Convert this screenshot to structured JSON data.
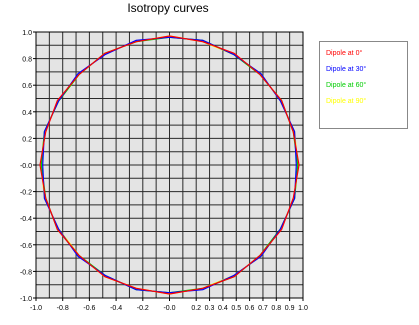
{
  "chart_data": {
    "type": "line",
    "title": "Isotropy curves",
    "xlabel": "",
    "ylabel": "",
    "xlim": [
      -1.0,
      1.0
    ],
    "ylim": [
      -1.0,
      1.0
    ],
    "grid": true,
    "legend_position": "right",
    "x_ticks": [
      "-1.0",
      "-0.8",
      "-0.6",
      "-0.4",
      "-0.2",
      "-0.0",
      "0.2",
      "0.3",
      "0.4",
      "0.5",
      "0.6",
      "0.7",
      "0.8",
      "0.9",
      "1.0"
    ],
    "y_ticks": [
      "1.0",
      "0.8",
      "0.6",
      "0.4",
      "0.2",
      "-0.0",
      "-0.2",
      "-0.4",
      "-0.6",
      "-0.8",
      "-1.0"
    ],
    "angles_deg": [
      0,
      15,
      30,
      45,
      60,
      75,
      90,
      105,
      120,
      135,
      150,
      165,
      180,
      195,
      210,
      225,
      240,
      255,
      270,
      285,
      300,
      315,
      330,
      345,
      360
    ],
    "series": [
      {
        "name": "Dipole at 0°",
        "color": "#ff0000",
        "radius": [
          0.97,
          0.96,
          0.97,
          0.96,
          0.97,
          0.96,
          0.97,
          0.96,
          0.97,
          0.96,
          0.97,
          0.96,
          0.97,
          0.96,
          0.97,
          0.96,
          0.97,
          0.96,
          0.97,
          0.96,
          0.97,
          0.96,
          0.97,
          0.96,
          0.97
        ]
      },
      {
        "name": "Dipole at 30°",
        "color": "#0000ff",
        "radius": [
          0.95,
          0.97,
          0.96,
          0.97,
          0.96,
          0.97,
          0.96,
          0.97,
          0.96,
          0.97,
          0.96,
          0.97,
          0.95,
          0.97,
          0.96,
          0.97,
          0.96,
          0.97,
          0.96,
          0.97,
          0.96,
          0.97,
          0.96,
          0.97,
          0.95
        ]
      },
      {
        "name": "Dipole at 60°",
        "color": "#00cc00",
        "radius": [
          0.96,
          0.96,
          0.97,
          0.96,
          0.96,
          0.97,
          0.96,
          0.96,
          0.97,
          0.96,
          0.96,
          0.97,
          0.96,
          0.96,
          0.97,
          0.96,
          0.96,
          0.97,
          0.96,
          0.96,
          0.97,
          0.96,
          0.96,
          0.97,
          0.96
        ]
      },
      {
        "name": "Dipole at 90°",
        "color": "#ffff00",
        "radius": [
          0.96,
          0.97,
          0.96,
          0.97,
          0.96,
          0.96,
          0.97,
          0.96,
          0.97,
          0.96,
          0.96,
          0.97,
          0.96,
          0.97,
          0.96,
          0.96,
          0.97,
          0.96,
          0.97,
          0.96,
          0.96,
          0.97,
          0.96,
          0.97,
          0.96
        ]
      }
    ]
  }
}
